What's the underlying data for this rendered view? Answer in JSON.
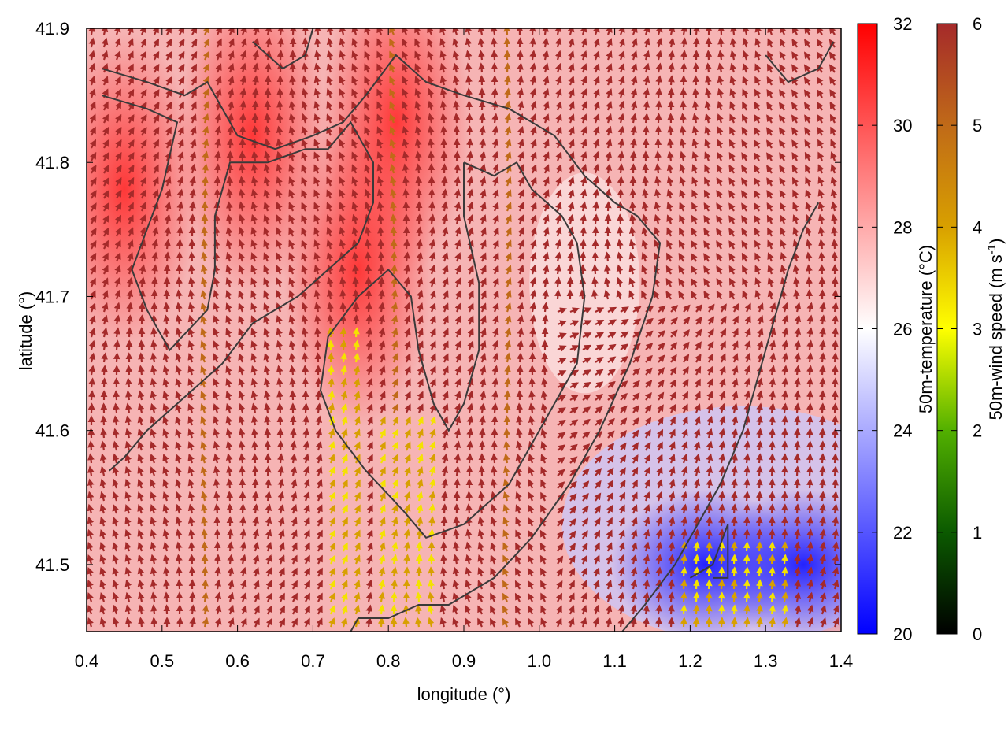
{
  "chart_data": {
    "type": "heatmap",
    "xlabel": "longitude (°)",
    "ylabel": "latitude (°)",
    "xlim": [
      0.4,
      1.4
    ],
    "ylim": [
      41.45,
      41.9
    ],
    "x_ticks": [
      0.4,
      0.5,
      0.6,
      0.7,
      0.8,
      0.9,
      1.0,
      1.1,
      1.2,
      1.3,
      1.4
    ],
    "x_tick_labels": [
      "0.4",
      "0.5",
      "0.6",
      "0.7",
      "0.8",
      "0.9",
      "1.0",
      "1.1",
      "1.2",
      "1.3",
      "1.4"
    ],
    "y_ticks": [
      41.5,
      41.6,
      41.7,
      41.8,
      41.9
    ],
    "y_tick_labels": [
      "41.5",
      "41.6",
      "41.7",
      "41.8",
      "41.9"
    ],
    "grid": false,
    "temperature_colorbar": {
      "label": "50m-temperature (°C)",
      "range": [
        20,
        32
      ],
      "ticks": [
        20,
        22,
        24,
        26,
        28,
        30,
        32
      ],
      "tick_labels": [
        "20",
        "22",
        "24",
        "26",
        "28",
        "30",
        "32"
      ],
      "colors": [
        "#0000ff",
        "#ffffff",
        "#ff0000"
      ]
    },
    "wind_colorbar": {
      "label_main": "50m-wind speed (m s",
      "label_sup": "-1",
      "label_end": ")",
      "range": [
        0,
        6
      ],
      "ticks": [
        0,
        1,
        2,
        3,
        4,
        5,
        6
      ],
      "tick_labels": [
        "0",
        "1",
        "2",
        "3",
        "4",
        "5",
        "6"
      ],
      "colors": [
        "#000000",
        "#0b5a00",
        "#52b000",
        "#ffff00",
        "#d8a000",
        "#c06a18",
        "#a52a2a"
      ]
    },
    "temperature_field": {
      "description_units": "°C",
      "hot_cores": [
        {
          "lon": 0.81,
          "lat": 41.83,
          "temp": 31.5
        },
        {
          "lon": 0.76,
          "lat": 41.72,
          "temp": 31.0
        },
        {
          "lon": 0.62,
          "lat": 41.82,
          "temp": 29.5
        },
        {
          "lon": 0.45,
          "lat": 41.78,
          "temp": 29.0
        }
      ],
      "cool_cores": [
        {
          "lon": 1.22,
          "lat": 41.5,
          "temp": 20.5
        },
        {
          "lon": 1.35,
          "lat": 41.5,
          "temp": 21.0
        }
      ]
    },
    "contours": [
      [
        [
          0.42,
          41.87
        ],
        [
          0.48,
          41.86
        ],
        [
          0.53,
          41.85
        ],
        [
          0.56,
          41.86
        ],
        [
          0.6,
          41.82
        ],
        [
          0.65,
          41.81
        ],
        [
          0.7,
          41.82
        ],
        [
          0.74,
          41.83
        ],
        [
          0.77,
          41.85
        ],
        [
          0.81,
          41.88
        ],
        [
          0.85,
          41.86
        ],
        [
          0.9,
          41.85
        ],
        [
          0.96,
          41.84
        ],
        [
          1.02,
          41.82
        ],
        [
          1.06,
          41.79
        ],
        [
          1.1,
          41.77
        ],
        [
          1.13,
          41.76
        ],
        [
          1.16,
          41.74
        ],
        [
          1.15,
          41.7
        ],
        [
          1.12,
          41.65
        ],
        [
          1.08,
          41.6
        ],
        [
          1.04,
          41.56
        ],
        [
          0.99,
          41.52
        ],
        [
          0.94,
          41.49
        ],
        [
          0.88,
          41.47
        ],
        [
          0.84,
          41.47
        ],
        [
          0.8,
          41.46
        ],
        [
          0.76,
          41.46
        ],
        [
          0.74,
          41.44
        ]
      ],
      [
        [
          0.42,
          41.85
        ],
        [
          0.48,
          41.84
        ],
        [
          0.52,
          41.83
        ],
        [
          0.5,
          41.78
        ],
        [
          0.48,
          41.75
        ],
        [
          0.46,
          41.72
        ],
        [
          0.48,
          41.69
        ],
        [
          0.51,
          41.66
        ],
        [
          0.56,
          41.69
        ],
        [
          0.57,
          41.72
        ],
        [
          0.57,
          41.76
        ],
        [
          0.59,
          41.8
        ],
        [
          0.64,
          41.8
        ],
        [
          0.69,
          41.81
        ],
        [
          0.72,
          41.81
        ],
        [
          0.75,
          41.83
        ],
        [
          0.78,
          41.8
        ],
        [
          0.78,
          41.77
        ],
        [
          0.76,
          41.74
        ],
        [
          0.72,
          41.72
        ],
        [
          0.68,
          41.7
        ],
        [
          0.62,
          41.68
        ],
        [
          0.58,
          41.65
        ],
        [
          0.52,
          41.62
        ],
        [
          0.48,
          41.6
        ],
        [
          0.45,
          41.58
        ],
        [
          0.43,
          41.57
        ]
      ],
      [
        [
          0.9,
          41.8
        ],
        [
          0.94,
          41.79
        ],
        [
          0.97,
          41.8
        ],
        [
          0.99,
          41.78
        ],
        [
          1.03,
          41.76
        ],
        [
          1.05,
          41.74
        ],
        [
          1.06,
          41.7
        ],
        [
          1.05,
          41.65
        ],
        [
          1.0,
          41.6
        ],
        [
          0.96,
          41.56
        ],
        [
          0.9,
          41.53
        ],
        [
          0.85,
          41.52
        ],
        [
          0.82,
          41.54
        ],
        [
          0.77,
          41.57
        ],
        [
          0.73,
          41.6
        ],
        [
          0.71,
          41.63
        ],
        [
          0.72,
          41.67
        ],
        [
          0.76,
          41.7
        ],
        [
          0.8,
          41.72
        ],
        [
          0.83,
          41.7
        ],
        [
          0.84,
          41.66
        ],
        [
          0.86,
          41.62
        ],
        [
          0.88,
          41.6
        ],
        [
          0.9,
          41.62
        ],
        [
          0.92,
          41.66
        ],
        [
          0.92,
          41.71
        ],
        [
          0.9,
          41.76
        ],
        [
          0.9,
          41.8
        ]
      ],
      [
        [
          1.11,
          41.45
        ],
        [
          1.14,
          41.47
        ],
        [
          1.18,
          41.5
        ],
        [
          1.21,
          41.53
        ],
        [
          1.24,
          41.56
        ],
        [
          1.27,
          41.6
        ],
        [
          1.29,
          41.64
        ],
        [
          1.31,
          41.68
        ],
        [
          1.33,
          41.72
        ],
        [
          1.35,
          41.75
        ],
        [
          1.37,
          41.77
        ]
      ],
      [
        [
          1.2,
          41.49
        ],
        [
          1.23,
          41.5
        ],
        [
          1.25,
          41.53
        ],
        [
          1.25,
          41.49
        ],
        [
          1.23,
          41.49
        ]
      ],
      [
        [
          0.62,
          41.89
        ],
        [
          0.66,
          41.87
        ],
        [
          0.69,
          41.88
        ],
        [
          0.7,
          41.9
        ]
      ],
      [
        [
          1.3,
          41.88
        ],
        [
          1.33,
          41.86
        ],
        [
          1.37,
          41.87
        ],
        [
          1.39,
          41.89
        ]
      ]
    ]
  }
}
